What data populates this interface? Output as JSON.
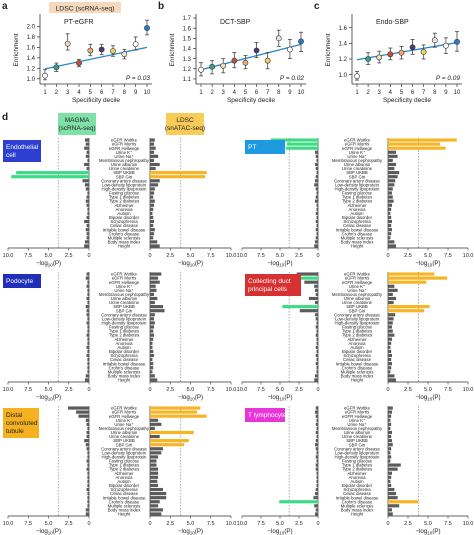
{
  "top_panels": [
    {
      "letter": "a",
      "badge": "LDSC (scRNA-seq)",
      "label": "PT-eGFR",
      "pvalue": "P = 0.03",
      "ylabel": "Enrichment",
      "xlabel": "Specificity decile",
      "ylim": [
        0.9,
        2.2
      ],
      "yticks": [
        "1.0",
        "1.2",
        "1.4",
        "1.6",
        "1.8",
        "2.0"
      ],
      "ytick_values": [
        1.0,
        1.2,
        1.4,
        1.6,
        1.8,
        2.0
      ],
      "trend": [
        1.19,
        1.6
      ],
      "points": [
        {
          "x": 1,
          "y": 1.06,
          "lo": 0.98,
          "hi": 1.18,
          "color": "#ffffff"
        },
        {
          "x": 2,
          "y": 1.22,
          "lo": 1.14,
          "hi": 1.3,
          "color": "#3a9e8f"
        },
        {
          "x": 3,
          "y": 1.67,
          "lo": 1.55,
          "hi": 1.86,
          "color": "#f6d9b9"
        },
        {
          "x": 4,
          "y": 1.3,
          "lo": 1.23,
          "hi": 1.37,
          "color": "#c94e3a"
        },
        {
          "x": 5,
          "y": 1.54,
          "lo": 1.44,
          "hi": 1.66,
          "color": "#f0a96a"
        },
        {
          "x": 6,
          "y": 1.56,
          "lo": 1.46,
          "hi": 1.66,
          "color": "#4e3a7a"
        },
        {
          "x": 7,
          "y": 1.53,
          "lo": 1.43,
          "hi": 1.63,
          "color": "#f3d060"
        },
        {
          "x": 8,
          "y": 1.47,
          "lo": 1.38,
          "hi": 1.56,
          "color": "#e7e7e7"
        },
        {
          "x": 9,
          "y": 1.66,
          "lo": 1.55,
          "hi": 1.8,
          "color": "#ffffff"
        },
        {
          "x": 10,
          "y": 1.97,
          "lo": 1.84,
          "hi": 2.12,
          "color": "#2b78c4"
        }
      ]
    },
    {
      "letter": "b",
      "badge": "",
      "label": "DCT-SBP",
      "pvalue": "P = 0.02",
      "ylabel": "Enrichment",
      "xlabel": "Specificity decile",
      "ylim": [
        1.05,
        1.72
      ],
      "yticks": [
        "1.1",
        "1.2",
        "1.3",
        "1.4",
        "1.5",
        "1.6",
        "1.7"
      ],
      "ytick_values": [
        1.1,
        1.2,
        1.3,
        1.4,
        1.5,
        1.6,
        1.7
      ],
      "trend": [
        1.19,
        1.44
      ],
      "points": [
        {
          "x": 1,
          "y": 1.19,
          "lo": 1.13,
          "hi": 1.26,
          "color": "#ffffff"
        },
        {
          "x": 2,
          "y": 1.22,
          "lo": 1.15,
          "hi": 1.28,
          "color": "#3a9e8f"
        },
        {
          "x": 3,
          "y": 1.23,
          "lo": 1.16,
          "hi": 1.3,
          "color": "#f6d9b9"
        },
        {
          "x": 4,
          "y": 1.28,
          "lo": 1.21,
          "hi": 1.36,
          "color": "#c94e3a"
        },
        {
          "x": 5,
          "y": 1.26,
          "lo": 1.2,
          "hi": 1.33,
          "color": "#f0a96a"
        },
        {
          "x": 6,
          "y": 1.38,
          "lo": 1.31,
          "hi": 1.46,
          "color": "#4e3a7a"
        },
        {
          "x": 7,
          "y": 1.28,
          "lo": 1.2,
          "hi": 1.36,
          "color": "#f3d060"
        },
        {
          "x": 8,
          "y": 1.5,
          "lo": 1.42,
          "hi": 1.58,
          "color": "#e7e7e7"
        },
        {
          "x": 9,
          "y": 1.39,
          "lo": 1.3,
          "hi": 1.49,
          "color": "#ffffff"
        },
        {
          "x": 10,
          "y": 1.47,
          "lo": 1.37,
          "hi": 1.56,
          "color": "#2b78c4"
        }
      ]
    },
    {
      "letter": "c",
      "badge": "",
      "label": "Endo-SBP",
      "pvalue": "P = 0.09",
      "ylabel": "Enrichment",
      "xlabel": "Specificity decile",
      "ylim": [
        0.88,
        1.75
      ],
      "yticks": [
        "1.0",
        "1.2",
        "1.4",
        "1.6"
      ],
      "ytick_values": [
        1.0,
        1.2,
        1.4,
        1.6
      ],
      "trend": [
        1.19,
        1.41
      ],
      "points": [
        {
          "x": 1,
          "y": 0.98,
          "lo": 0.93,
          "hi": 1.04,
          "color": "#ffffff"
        },
        {
          "x": 2,
          "y": 1.2,
          "lo": 1.13,
          "hi": 1.28,
          "color": "#3a9e8f"
        },
        {
          "x": 3,
          "y": 1.22,
          "lo": 1.15,
          "hi": 1.3,
          "color": "#f6d9b9"
        },
        {
          "x": 4,
          "y": 1.26,
          "lo": 1.19,
          "hi": 1.34,
          "color": "#c94e3a"
        },
        {
          "x": 5,
          "y": 1.28,
          "lo": 1.2,
          "hi": 1.36,
          "color": "#f0a96a"
        },
        {
          "x": 6,
          "y": 1.35,
          "lo": 1.26,
          "hi": 1.45,
          "color": "#4e3a7a"
        },
        {
          "x": 7,
          "y": 1.29,
          "lo": 1.2,
          "hi": 1.38,
          "color": "#f3d060"
        },
        {
          "x": 8,
          "y": 1.44,
          "lo": 1.35,
          "hi": 1.53,
          "color": "#e7e7e7"
        },
        {
          "x": 9,
          "y": 1.37,
          "lo": 1.27,
          "hi": 1.47,
          "color": "#ffffff"
        },
        {
          "x": 10,
          "y": 1.42,
          "lo": 1.3,
          "hi": 1.55,
          "color": "#2b78c4"
        }
      ]
    }
  ],
  "panel_d": {
    "letter": "d",
    "magma_badge": "MAGMA\n(scRNA-seq)",
    "ldsc_badge": "LDSC\n(snATAC-seq)",
    "xlabel": "−log",
    "xlabel_sub": "10",
    "xlabel_tail": "(P)",
    "xticks": [
      "10.0",
      "7.5",
      "5.0",
      "2.5",
      "0"
    ],
    "xtick_values": [
      10,
      7.5,
      5,
      2.5,
      0
    ],
    "threshold": 3.8,
    "traits": [
      "eGFR Wuttke",
      "eGFR Morris",
      "eGFR Hellwege",
      "Urine K",
      "Urine Na",
      "Membranous nephropathy",
      "Urine albumin",
      "Urine creatinine",
      "SBP UKBB",
      "SBP Giri",
      "Coronary artery disease",
      "Low-density lipoprotein",
      "High-density lipoprotein",
      "Fasting glucose",
      "Type 1 diabetes",
      "Type 2 diabetes",
      "Alzheimer",
      "Anorexia",
      "Autism",
      "Bipolar disorder",
      "Schizophrenia",
      "Celiac disease",
      "Irritable bowel disease",
      "Crohn's disease",
      "Multiple sclerosis",
      "Body mass index",
      "Height"
    ],
    "trait_labels": [
      "eGFR Wuttke",
      "eGFR Morris",
      "eGFR Hellwege",
      "Urine K⁺",
      "Urine Na⁺",
      "Membranous nephropathy",
      "Urine albumin",
      "Urine creatinine",
      "SBP UKBB",
      "SBP Giri",
      "Coronary artery disease",
      "Low-density lipoprotein",
      "High-density lipoprotein",
      "Fasting glucose",
      "Type 1 diabetes",
      "Type 2 diabetes",
      "Alzheimer",
      "Anorexia",
      "Autism",
      "Bipolar disorder",
      "Schizophrenia",
      "Celiac disease",
      "Irritable bowel disease",
      "Crohn's disease",
      "Multiple sclerosis",
      "Body mass index",
      "Height"
    ],
    "cell_types": [
      {
        "name": "Endothelial\ncell",
        "badge_color": "#2d3fd2",
        "magma": [
          0.5,
          0.4,
          0.6,
          0.3,
          0.4,
          0.2,
          0.6,
          0.3,
          9.0,
          9.6,
          0.8,
          0.5,
          0.4,
          0.2,
          0.3,
          0.4,
          0.3,
          0.2,
          0.2,
          0.3,
          0.6,
          0.3,
          0.4,
          0.3,
          0.3,
          0.5,
          0.6
        ],
        "ldsc": [
          0.6,
          0.5,
          0.7,
          0.5,
          1.0,
          0.5,
          1.2,
          0.7,
          7.0,
          6.8,
          1.2,
          1.0,
          0.6,
          0.5,
          0.4,
          0.6,
          0.5,
          0.4,
          0.3,
          0.4,
          0.5,
          0.4,
          0.6,
          0.5,
          0.4,
          0.9,
          1.2
        ]
      },
      {
        "name": "PT",
        "badge_color": "#1e9be0",
        "magma": [
          6.2,
          4.1,
          4.2,
          0.4,
          0.3,
          0.2,
          0.4,
          0.3,
          0.2,
          0.3,
          0.4,
          0.5,
          0.3,
          0.2,
          0.3,
          0.4,
          0.2,
          0.2,
          0.3,
          0.2,
          0.3,
          0.2,
          0.3,
          0.2,
          0.3,
          0.4,
          0.5
        ],
        "ldsc": [
          8.6,
          6.5,
          7.2,
          1.0,
          1.2,
          0.6,
          1.0,
          0.8,
          1.4,
          1.2,
          0.9,
          0.8,
          0.6,
          0.5,
          0.6,
          0.7,
          0.5,
          0.4,
          0.3,
          0.4,
          0.5,
          0.4,
          0.5,
          0.4,
          0.3,
          0.8,
          1.0
        ]
      },
      {
        "name": "Podocyte",
        "badge_color": "#1f2fb8",
        "magma": [
          0.3,
          0.4,
          0.2,
          0.3,
          0.2,
          0.2,
          0.3,
          0.2,
          0.4,
          0.3,
          0.3,
          0.2,
          0.3,
          0.2,
          0.2,
          0.3,
          0.2,
          0.2,
          0.3,
          0.2,
          0.3,
          0.2,
          0.2,
          0.2,
          0.2,
          0.4,
          0.5
        ],
        "ldsc": [
          1.4,
          1.0,
          1.2,
          0.7,
          0.8,
          0.5,
          0.9,
          0.6,
          1.6,
          1.8,
          0.6,
          0.5,
          0.6,
          0.5,
          0.4,
          0.5,
          0.4,
          0.3,
          0.3,
          0.4,
          0.5,
          0.3,
          0.4,
          0.4,
          0.3,
          0.6,
          0.9
        ]
      },
      {
        "name": "Collecting duct\nprincipal cells",
        "badge_color": "#d63031",
        "magma": [
          2.8,
          4.4,
          1.8,
          0.5,
          0.4,
          0.3,
          1.2,
          0.4,
          4.7,
          2.4,
          0.4,
          0.3,
          0.2,
          0.3,
          0.2,
          0.3,
          0.2,
          0.2,
          0.3,
          0.2,
          0.3,
          0.2,
          0.3,
          0.2,
          0.2,
          0.4,
          0.5
        ],
        "ldsc": [
          5.8,
          7.4,
          4.8,
          0.8,
          1.2,
          0.6,
          1.0,
          0.7,
          5.2,
          4.5,
          0.9,
          0.7,
          0.6,
          0.5,
          0.6,
          0.8,
          0.5,
          0.4,
          0.3,
          0.4,
          0.5,
          0.4,
          0.5,
          0.4,
          0.3,
          0.8,
          1.0
        ]
      },
      {
        "name": "Distal\nconvoluted\ntubule",
        "badge_color": "#f5b120",
        "magma": [
          2.6,
          1.6,
          1.3,
          0.4,
          0.3,
          0.2,
          0.3,
          0.3,
          0.6,
          0.4,
          0.3,
          0.2,
          0.2,
          0.3,
          0.2,
          0.3,
          0.2,
          0.2,
          0.2,
          0.2,
          0.3,
          0.2,
          0.2,
          0.2,
          0.2,
          0.4,
          0.4
        ],
        "ldsc": [
          6.2,
          5.8,
          7.0,
          1.0,
          1.4,
          0.6,
          5.4,
          1.2,
          4.8,
          4.2,
          1.6,
          1.4,
          1.0,
          0.8,
          0.8,
          1.0,
          1.0,
          1.0,
          0.9,
          1.0,
          1.6,
          2.0,
          2.0,
          1.2,
          1.0,
          1.6,
          1.4
        ]
      },
      {
        "name": "T lymphocyte",
        "badge_color": "#e934d8",
        "magma": [
          0.3,
          0.4,
          0.3,
          0.2,
          0.3,
          0.2,
          0.3,
          0.2,
          0.3,
          0.4,
          0.3,
          0.2,
          0.3,
          0.2,
          0.3,
          0.3,
          0.2,
          0.2,
          0.2,
          0.2,
          0.3,
          0.4,
          0.6,
          5.1,
          0.5,
          0.3,
          0.4
        ],
        "ldsc": [
          0.6,
          0.5,
          0.4,
          0.3,
          0.4,
          0.3,
          0.5,
          0.4,
          0.5,
          0.6,
          0.4,
          0.3,
          0.4,
          0.3,
          1.6,
          1.2,
          0.5,
          0.4,
          0.3,
          0.4,
          0.8,
          1.0,
          1.2,
          3.8,
          1.4,
          0.5,
          0.6
        ]
      }
    ]
  },
  "colors": {
    "magma_sig": "#3ddc84",
    "ldsc_sig": "#f7b526",
    "nonsig": "#5b5b5b",
    "trend": "#2a86c7"
  }
}
